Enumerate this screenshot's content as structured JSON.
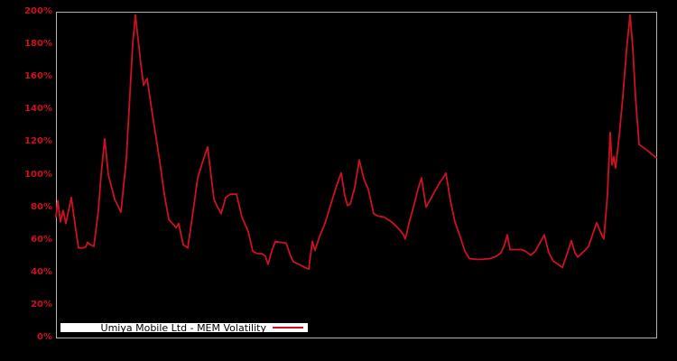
{
  "window": {
    "background_color": "#000000"
  },
  "legend": {
    "label": "Umiya Mobile Ltd - MEM Volatility",
    "sample_color": "#cd1123"
  },
  "chart_data": {
    "type": "line",
    "title": "",
    "xlabel": "",
    "ylabel": "",
    "x_axis_tick_labels": "none",
    "ylim": [
      0,
      200
    ],
    "yticks": [
      0,
      20,
      40,
      60,
      80,
      100,
      120,
      140,
      160,
      180,
      200
    ],
    "ytick_suffix": "%",
    "grid": false,
    "legend_position": "bottom-left-inside",
    "axis_color": "#b2b2b2",
    "tick_label_color": "#cc1122",
    "plot_background": "#000000",
    "series": [
      {
        "name": "Umiya Mobile Ltd - MEM Volatility",
        "color": "#cd1123",
        "points": [
          [
            0.0,
            74
          ],
          [
            0.003,
            84
          ],
          [
            0.0075,
            71
          ],
          [
            0.012,
            78
          ],
          [
            0.0165,
            70
          ],
          [
            0.0256,
            86
          ],
          [
            0.0331,
            66
          ],
          [
            0.0376,
            55
          ],
          [
            0.0451,
            55
          ],
          [
            0.0496,
            55.5
          ],
          [
            0.0526,
            58.5
          ],
          [
            0.0571,
            57
          ],
          [
            0.0632,
            56
          ],
          [
            0.0707,
            78
          ],
          [
            0.0752,
            100
          ],
          [
            0.0812,
            122
          ],
          [
            0.0872,
            100
          ],
          [
            0.0977,
            85
          ],
          [
            0.1083,
            77
          ],
          [
            0.1173,
            110
          ],
          [
            0.1233,
            150
          ],
          [
            0.1278,
            180
          ],
          [
            0.1323,
            198
          ],
          [
            0.1368,
            183
          ],
          [
            0.1414,
            168
          ],
          [
            0.1459,
            155
          ],
          [
            0.1519,
            159
          ],
          [
            0.1594,
            140
          ],
          [
            0.1654,
            126
          ],
          [
            0.1729,
            108
          ],
          [
            0.1805,
            88
          ],
          [
            0.188,
            72.5
          ],
          [
            0.194,
            70
          ],
          [
            0.2,
            67.5
          ],
          [
            0.2045,
            70
          ],
          [
            0.212,
            57
          ],
          [
            0.2196,
            55
          ],
          [
            0.2271,
            74
          ],
          [
            0.2361,
            98
          ],
          [
            0.2436,
            107
          ],
          [
            0.2526,
            117
          ],
          [
            0.2632,
            85
          ],
          [
            0.2692,
            80
          ],
          [
            0.2752,
            76
          ],
          [
            0.2827,
            86
          ],
          [
            0.2902,
            88
          ],
          [
            0.3008,
            88
          ],
          [
            0.3098,
            74
          ],
          [
            0.3203,
            65
          ],
          [
            0.3278,
            53
          ],
          [
            0.3353,
            51.5
          ],
          [
            0.3429,
            51.5
          ],
          [
            0.3489,
            50
          ],
          [
            0.3534,
            45
          ],
          [
            0.3594,
            53
          ],
          [
            0.3654,
            59
          ],
          [
            0.3729,
            58.5
          ],
          [
            0.3835,
            58
          ],
          [
            0.391,
            50
          ],
          [
            0.3955,
            46.5
          ],
          [
            0.4045,
            45
          ],
          [
            0.412,
            43.5
          ],
          [
            0.4211,
            42
          ],
          [
            0.4271,
            59
          ],
          [
            0.4316,
            53.5
          ],
          [
            0.4391,
            62
          ],
          [
            0.4481,
            70
          ],
          [
            0.4556,
            79
          ],
          [
            0.4632,
            88
          ],
          [
            0.4692,
            95
          ],
          [
            0.4752,
            101
          ],
          [
            0.4812,
            87
          ],
          [
            0.4857,
            81
          ],
          [
            0.4902,
            82
          ],
          [
            0.4977,
            92
          ],
          [
            0.5053,
            109
          ],
          [
            0.5128,
            97.5
          ],
          [
            0.5203,
            91
          ],
          [
            0.5293,
            76
          ],
          [
            0.5368,
            74.5
          ],
          [
            0.5459,
            74
          ],
          [
            0.5549,
            72
          ],
          [
            0.5639,
            69.5
          ],
          [
            0.5729,
            66
          ],
          [
            0.5789,
            63
          ],
          [
            0.582,
            60.5
          ],
          [
            0.5895,
            72
          ],
          [
            0.597,
            82
          ],
          [
            0.603,
            91
          ],
          [
            0.609,
            98
          ],
          [
            0.6165,
            80
          ],
          [
            0.624,
            85
          ],
          [
            0.6316,
            90
          ],
          [
            0.6391,
            95
          ],
          [
            0.6451,
            98
          ],
          [
            0.6496,
            101
          ],
          [
            0.6571,
            84
          ],
          [
            0.6647,
            71
          ],
          [
            0.6737,
            61.5
          ],
          [
            0.6812,
            53
          ],
          [
            0.6887,
            48.5
          ],
          [
            0.6992,
            48
          ],
          [
            0.7098,
            48
          ],
          [
            0.7233,
            48.5
          ],
          [
            0.7338,
            50
          ],
          [
            0.7414,
            52
          ],
          [
            0.7474,
            57
          ],
          [
            0.7519,
            63
          ],
          [
            0.7564,
            54
          ],
          [
            0.7654,
            54
          ],
          [
            0.7744,
            54
          ],
          [
            0.782,
            53
          ],
          [
            0.791,
            50.5
          ],
          [
            0.7985,
            53
          ],
          [
            0.806,
            58
          ],
          [
            0.8135,
            63
          ],
          [
            0.8211,
            52
          ],
          [
            0.8286,
            47
          ],
          [
            0.8361,
            45
          ],
          [
            0.8436,
            43
          ],
          [
            0.8511,
            51
          ],
          [
            0.8586,
            59.5
          ],
          [
            0.8647,
            52
          ],
          [
            0.8692,
            49.5
          ],
          [
            0.8767,
            52
          ],
          [
            0.8827,
            54
          ],
          [
            0.8872,
            56
          ],
          [
            0.8947,
            64
          ],
          [
            0.9008,
            70.5
          ],
          [
            0.9068,
            65
          ],
          [
            0.9128,
            60.5
          ],
          [
            0.9188,
            88
          ],
          [
            0.9233,
            126
          ],
          [
            0.9263,
            106
          ],
          [
            0.9293,
            111
          ],
          [
            0.9323,
            104
          ],
          [
            0.9383,
            124
          ],
          [
            0.9444,
            148
          ],
          [
            0.9504,
            176
          ],
          [
            0.9564,
            198
          ],
          [
            0.9609,
            178
          ],
          [
            0.9654,
            148
          ],
          [
            0.9714,
            118.5
          ],
          [
            0.9789,
            116.5
          ],
          [
            0.9865,
            114.5
          ],
          [
            0.9925,
            112.5
          ],
          [
            1.0,
            110.5
          ]
        ]
      }
    ]
  }
}
